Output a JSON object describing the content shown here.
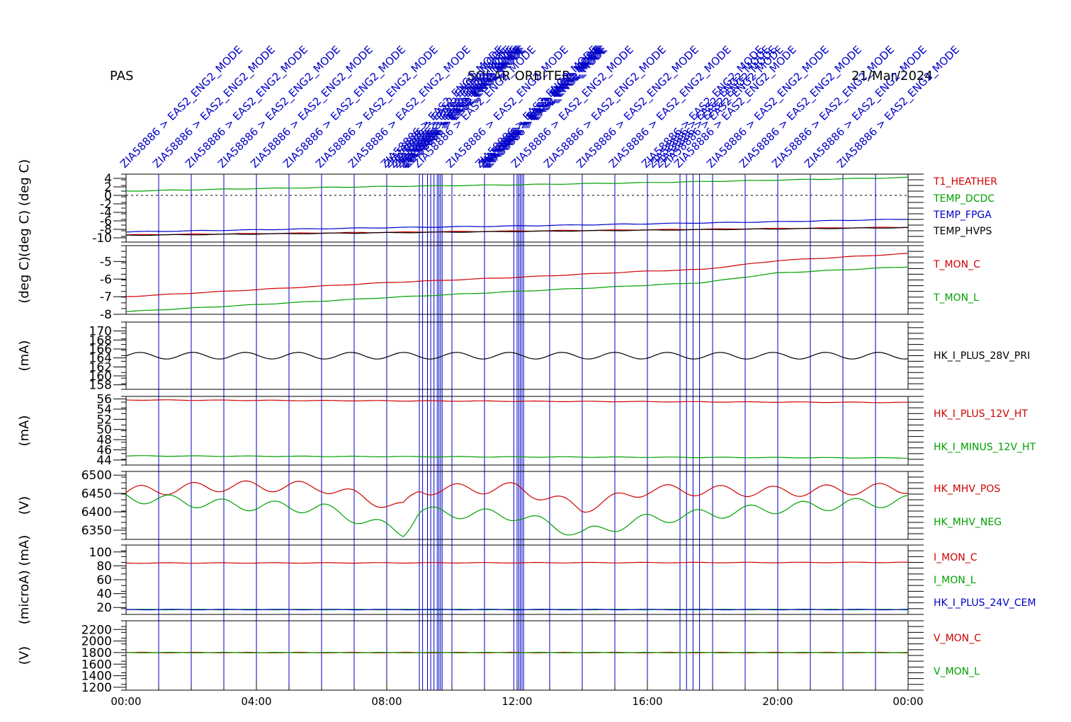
{
  "header": {
    "left": "PAS",
    "center": "SOLAR ORBITER",
    "right": "21/Mar/2024"
  },
  "x_ticks": [
    "00:00",
    "04:00",
    "08:00",
    "12:00",
    "16:00",
    "20:00",
    "00:00"
  ],
  "event_label": "ZIA58886 > EAS2_ENG2_MODE",
  "colors": {
    "red": "#d00000",
    "green": "#00a000",
    "blue": "#0000c8",
    "black": "#000000"
  },
  "chart_data": [
    {
      "type": "line",
      "ylabel": "(deg C) (deg C)",
      "ylim": [
        -11,
        5
      ],
      "yticks": [
        4,
        2,
        0,
        -2,
        -4,
        -6,
        -8,
        -10
      ],
      "zero_line": 0,
      "series": [
        {
          "name": "T1_HEATHER",
          "color": "red",
          "x": [
            0,
            24
          ],
          "y": [
            -9.3,
            -7.5
          ]
        },
        {
          "name": "TEMP_DCDC",
          "color": "green",
          "x": [
            0,
            4,
            8,
            12,
            16,
            20,
            24
          ],
          "y": [
            1.0,
            1.6,
            2.1,
            2.5,
            3.0,
            3.6,
            4.2
          ]
        },
        {
          "name": "TEMP_FPGA",
          "color": "blue",
          "x": [
            0,
            4,
            8,
            12,
            16,
            20,
            24
          ],
          "y": [
            -8.6,
            -8.1,
            -7.6,
            -7.2,
            -6.7,
            -6.2,
            -5.6
          ]
        },
        {
          "name": "TEMP_HVPS",
          "color": "black",
          "x": [
            0,
            24
          ],
          "y": [
            -9.4,
            -7.6
          ]
        }
      ]
    },
    {
      "type": "line",
      "ylabel": "(deg C)",
      "ylim": [
        -8,
        -4.1
      ],
      "yticks": [
        -5,
        -6,
        -7,
        -8
      ],
      "series": [
        {
          "name": "T_MON_C",
          "color": "red",
          "x": [
            0,
            4,
            8,
            12,
            16,
            17.7,
            20,
            24
          ],
          "y": [
            -7.0,
            -6.6,
            -6.2,
            -5.9,
            -5.55,
            -5.45,
            -4.95,
            -4.55
          ]
        },
        {
          "name": "T_MON_L",
          "color": "green",
          "x": [
            0,
            4,
            8,
            12,
            16,
            17.7,
            20,
            24
          ],
          "y": [
            -7.85,
            -7.45,
            -7.05,
            -6.7,
            -6.35,
            -6.2,
            -5.65,
            -5.3
          ]
        }
      ]
    },
    {
      "type": "line",
      "ylabel": "(mA)",
      "ylim": [
        157,
        172
      ],
      "yticks": [
        170,
        168,
        166,
        164,
        162,
        160,
        158
      ],
      "series": [
        {
          "name": "HK_I_PLUS_28V_PRI",
          "color": "black",
          "x": [
            0,
            24
          ],
          "y": [
            164.5,
            164.5
          ]
        }
      ]
    },
    {
      "type": "line",
      "ylabel": "(mA)",
      "ylim": [
        43,
        56.5
      ],
      "yticks": [
        56,
        54,
        52,
        50,
        48,
        46,
        44
      ],
      "series": [
        {
          "name": "HK_I_PLUS_12V_HT",
          "color": "red",
          "x": [
            0,
            24
          ],
          "y": [
            55.8,
            55.3
          ]
        },
        {
          "name": "HK_I_MINUS_12V_HT",
          "color": "green",
          "x": [
            0,
            24
          ],
          "y": [
            44.8,
            44.4
          ]
        }
      ]
    },
    {
      "type": "line",
      "ylabel": "(V)",
      "ylim": [
        6325,
        6510
      ],
      "yticks": [
        6500,
        6450,
        6400,
        6350
      ],
      "series": [
        {
          "name": "HK_MHV_POS",
          "color": "red",
          "x": [
            0,
            3,
            6,
            8.5,
            9,
            12,
            14,
            16,
            20,
            24
          ],
          "y": [
            6455,
            6470,
            6468,
            6410,
            6460,
            6465,
            6410,
            6460,
            6455,
            6465
          ]
        },
        {
          "name": "HK_MHV_NEG",
          "color": "green",
          "x": [
            0,
            3,
            6,
            8.5,
            9,
            12,
            14,
            16,
            20,
            24
          ],
          "y": [
            6440,
            6420,
            6410,
            6345,
            6400,
            6390,
            6340,
            6380,
            6410,
            6430
          ]
        }
      ]
    },
    {
      "type": "line",
      "ylabel": "(microA) (mA)",
      "ylim": [
        10,
        110
      ],
      "yticks": [
        100,
        80,
        60,
        40,
        20
      ],
      "series": [
        {
          "name": "I_MON_C",
          "color": "red",
          "x": [
            0,
            24
          ],
          "y": [
            84,
            85
          ]
        },
        {
          "name": "I_MON_L",
          "color": "green",
          "x": [
            0,
            24
          ],
          "y": [
            17,
            17
          ]
        },
        {
          "name": "HK_I_PLUS_24V_CEM",
          "color": "blue",
          "x": [
            0,
            24
          ],
          "y": [
            17,
            17
          ]
        }
      ]
    },
    {
      "type": "line",
      "ylabel": "(V)",
      "ylim": [
        1150,
        2350
      ],
      "yticks": [
        2200,
        2000,
        1800,
        1600,
        1400,
        1200
      ],
      "series": [
        {
          "name": "V_MON_C",
          "color": "red",
          "x": [
            0,
            24
          ],
          "y": [
            1800,
            1800
          ]
        },
        {
          "name": "V_MON_L",
          "color": "green",
          "x": [
            0,
            24
          ],
          "y": [
            1800,
            1800
          ]
        }
      ]
    }
  ]
}
